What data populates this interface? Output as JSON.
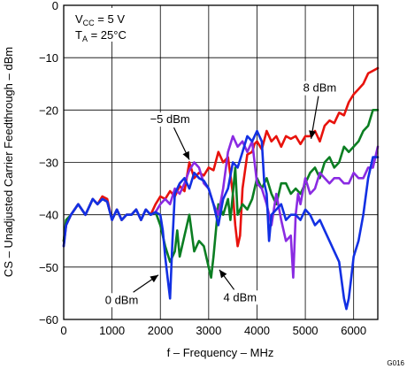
{
  "chart_data": {
    "type": "line",
    "figure_id": "G016",
    "xlabel": "f – Frequency – MHz",
    "ylabel": "CS – Unadjusted Carrier Feedthrough – dBm",
    "xlim": [
      0,
      6500
    ],
    "ylim": [
      -60,
      0
    ],
    "x_ticks": [
      0,
      1000,
      2000,
      3000,
      4000,
      5000,
      6000
    ],
    "y_ticks": [
      0,
      -10,
      -20,
      -30,
      -40,
      -50,
      -60
    ],
    "x_tick_labels": [
      "0",
      "1000",
      "2000",
      "3000",
      "4000",
      "5000",
      "6000"
    ],
    "y_tick_labels": [
      "0",
      "−10",
      "−20",
      "−30",
      "−40",
      "−50",
      "−60"
    ],
    "grid": true,
    "legend": "none",
    "conditions": [
      {
        "main": "V",
        "sub": "CC",
        "rest": " = 5 V"
      },
      {
        "main": "T",
        "sub": "A",
        "rest": " = 25°C"
      }
    ],
    "annotations": [
      {
        "text": "8 dBm",
        "x": 5300,
        "y": -16.5,
        "arrow_to": [
          5120,
          -25.5
        ]
      },
      {
        "text": "−5 dBm",
        "x": 2200,
        "y": -22.5,
        "arrow_to": [
          2600,
          -29.5
        ]
      },
      {
        "text": "4 dBm",
        "x": 3650,
        "y": -56.5,
        "arrow_to": [
          3220,
          -50.5
        ]
      },
      {
        "text": "0 dBm",
        "x": 1200,
        "y": -57,
        "arrow_to": [
          1960,
          -51.5
        ]
      }
    ],
    "series": [
      {
        "label": "8 dBm",
        "color": "#e8120c",
        "x": [
          0,
          50,
          150,
          300,
          450,
          600,
          700,
          800,
          900,
          1000,
          1100,
          1200,
          1300,
          1400,
          1500,
          1600,
          1700,
          1800,
          1900,
          2000,
          2100,
          2200,
          2300,
          2400,
          2500,
          2600,
          2700,
          2800,
          2900,
          3000,
          3100,
          3200,
          3300,
          3400,
          3500,
          3550,
          3600,
          3650,
          3700,
          3800,
          3900,
          3950,
          4000,
          4100,
          4200,
          4300,
          4400,
          4500,
          4600,
          4700,
          4800,
          4900,
          5000,
          5100,
          5200,
          5300,
          5400,
          5500,
          5600,
          5700,
          5800,
          5900,
          6000,
          6100,
          6200,
          6300,
          6400,
          6500
        ],
        "y": [
          -45,
          -42,
          -40,
          -38,
          -40,
          -37,
          -38,
          -36.5,
          -37,
          -41,
          -39,
          -41,
          -40,
          -40,
          -39,
          -41,
          -39,
          -40,
          -38,
          -36.5,
          -37,
          -35.5,
          -36.5,
          -34.5,
          -35.5,
          -30,
          -33,
          -32,
          -32.5,
          -31,
          -31.5,
          -28,
          -30,
          -29,
          -36,
          -42,
          -46,
          -44,
          -35,
          -28.5,
          -28,
          -26.5,
          -26,
          -27.5,
          -24,
          -26,
          -25,
          -27,
          -25,
          -25.5,
          -25,
          -26.5,
          -25,
          -25,
          -24,
          -26,
          -23,
          -22,
          -22.5,
          -20.5,
          -21,
          -18.5,
          -17,
          -16,
          -15,
          -13,
          -12.5,
          -12
        ]
      },
      {
        "label": "4 dBm",
        "color": "#0b7e22",
        "x": [
          0,
          50,
          150,
          300,
          450,
          600,
          700,
          800,
          900,
          1000,
          1100,
          1200,
          1300,
          1400,
          1500,
          1600,
          1700,
          1800,
          1900,
          2000,
          2100,
          2200,
          2300,
          2350,
          2400,
          2500,
          2600,
          2700,
          2800,
          2900,
          3000,
          3050,
          3100,
          3200,
          3300,
          3400,
          3450,
          3500,
          3550,
          3600,
          3700,
          3800,
          3900,
          4000,
          4100,
          4200,
          4300,
          4400,
          4500,
          4600,
          4700,
          4800,
          4900,
          5000,
          5100,
          5200,
          5300,
          5400,
          5500,
          5600,
          5700,
          5800,
          5900,
          6000,
          6100,
          6200,
          6300,
          6400,
          6500
        ],
        "y": [
          -45,
          -41,
          -40,
          -38,
          -40,
          -37,
          -38,
          -37,
          -37.5,
          -41,
          -39,
          -41,
          -40,
          -40,
          -39,
          -41,
          -39,
          -40,
          -39.5,
          -42,
          -46,
          -49,
          -47,
          -43,
          -48,
          -44,
          -40,
          -47,
          -45,
          -46,
          -50,
          -52,
          -48,
          -38,
          -40,
          -37,
          -41,
          -36,
          -31,
          -40,
          -38,
          -39,
          -37,
          -33,
          -35,
          -33,
          -36,
          -38,
          -34,
          -34,
          -36,
          -35,
          -36,
          -34,
          -32,
          -31,
          -33,
          -30,
          -29,
          -31,
          -30,
          -27,
          -28,
          -27,
          -26,
          -24,
          -23,
          -20,
          -20
        ]
      },
      {
        "label": "−5 dBm",
        "color": "#8a2be2",
        "x": [
          0,
          50,
          150,
          300,
          450,
          600,
          700,
          800,
          900,
          1000,
          1100,
          1200,
          1300,
          1400,
          1500,
          1600,
          1700,
          1800,
          1900,
          2000,
          2100,
          2200,
          2300,
          2400,
          2500,
          2600,
          2700,
          2800,
          2900,
          3000,
          3100,
          3200,
          3300,
          3400,
          3500,
          3600,
          3700,
          3800,
          3900,
          4000,
          4100,
          4200,
          4300,
          4400,
          4500,
          4600,
          4700,
          4750,
          4800,
          4850,
          4900,
          5000,
          5100,
          5200,
          5300,
          5400,
          5500,
          5600,
          5700,
          5800,
          5900,
          6000,
          6100,
          6200,
          6300,
          6400,
          6500
        ],
        "y": [
          -46,
          -42,
          -40,
          -38,
          -40,
          -37,
          -38,
          -37,
          -37.5,
          -41,
          -39,
          -41,
          -40,
          -40,
          -39,
          -41,
          -39,
          -40,
          -39.5,
          -38,
          -37,
          -38,
          -35,
          -36,
          -34,
          -31.5,
          -30,
          -31,
          -34,
          -35,
          -38,
          -40,
          -35,
          -28,
          -25,
          -27,
          -26,
          -28,
          -26,
          -34,
          -35,
          -38,
          -42,
          -36,
          -41,
          -45,
          -44,
          -52,
          -40,
          -36,
          -38,
          -33,
          -36,
          -35,
          -32,
          -33,
          -34,
          -33,
          -33,
          -34,
          -34,
          -32,
          -33,
          -33,
          -31,
          -31,
          -27
        ]
      },
      {
        "label": "0 dBm",
        "color": "#1230e3",
        "x": [
          0,
          50,
          150,
          300,
          450,
          600,
          700,
          800,
          900,
          1000,
          1100,
          1200,
          1300,
          1400,
          1500,
          1600,
          1700,
          1800,
          1900,
          2000,
          2050,
          2100,
          2150,
          2200,
          2250,
          2300,
          2400,
          2500,
          2600,
          2700,
          2800,
          2900,
          3000,
          3100,
          3200,
          3300,
          3400,
          3500,
          3600,
          3700,
          3800,
          3900,
          4000,
          4100,
          4150,
          4200,
          4250,
          4300,
          4400,
          4500,
          4600,
          4700,
          4800,
          4900,
          5000,
          5100,
          5200,
          5300,
          5400,
          5500,
          5600,
          5700,
          5800,
          5850,
          5900,
          5950,
          6000,
          6100,
          6200,
          6300,
          6400,
          6500
        ],
        "y": [
          -46,
          -42,
          -40,
          -38,
          -40,
          -37,
          -38,
          -37,
          -37.5,
          -41,
          -39,
          -41,
          -40,
          -40,
          -39,
          -41,
          -39,
          -40,
          -39.5,
          -40,
          -43,
          -48,
          -52,
          -56,
          -45,
          -36,
          -34,
          -33,
          -35,
          -32,
          -33,
          -33.5,
          -35,
          -38,
          -42,
          -37,
          -35,
          -30,
          -31,
          -28,
          -25,
          -26,
          -24,
          -26,
          -34,
          -36,
          -45,
          -40,
          -39,
          -38,
          -41,
          -40,
          -40,
          -41,
          -39,
          -40,
          -42,
          -41,
          -43,
          -45,
          -47,
          -49,
          -56,
          -58,
          -56,
          -52,
          -48,
          -45,
          -40,
          -33,
          -29,
          -29
        ]
      }
    ]
  }
}
